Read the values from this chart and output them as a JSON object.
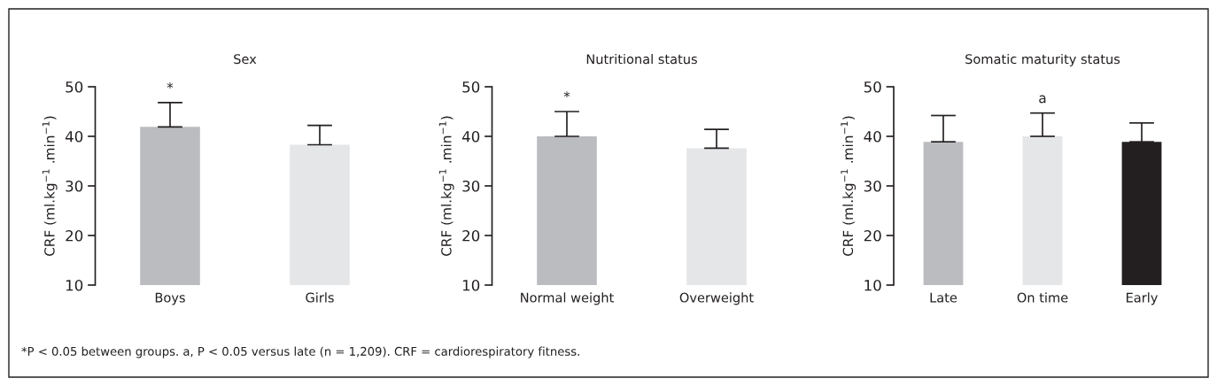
{
  "chart_data": [
    {
      "type": "bar",
      "title": "Sex",
      "ylabel": "CRF (ml.kg$^{−1}$ .min$^{−1}$)",
      "categories": [
        "Boys",
        "Girls"
      ],
      "values": [
        41.9,
        38.3
      ],
      "errors": [
        [
          41.9,
          46.8
        ],
        [
          38.3,
          42.2
        ]
      ],
      "colors": [
        "#bbbcc0",
        "#e5e6e8"
      ],
      "ylim": [
        10,
        50
      ],
      "yticks": [
        10,
        20,
        30,
        40,
        50
      ],
      "annotations": [
        "*",
        "*P < 0.05 between groups. a, P < 0.05 versus late (n = 1,209). CRF = cardiorespiratory fitness."
      ]
    },
    {
      "type": "bar",
      "title": "Nutritional status",
      "ylabel": "CRF (ml.kg$^{−1}$ .min$^{−1}$)",
      "categories": [
        "Normal weight",
        "Overweight"
      ],
      "values": [
        40.0,
        37.6
      ],
      "errors": [
        [
          40.0,
          45.0
        ],
        [
          37.6,
          41.4
        ]
      ],
      "colors": [
        "#bbbcc0",
        "#e5e6e8"
      ],
      "ylim": [
        10,
        50
      ],
      "yticks": [
        10,
        20,
        30,
        40,
        50
      ],
      "annotations": [
        "*"
      ]
    },
    {
      "type": "bar",
      "title": "Somatic maturity status",
      "ylabel": "CRF (ml.kg$^{−1}$ .min$^{−1}$)",
      "categories": [
        "Late",
        "On time",
        "Early"
      ],
      "values": [
        38.9,
        40.0,
        38.9
      ],
      "errors": [
        [
          38.9,
          44.2
        ],
        [
          40.0,
          44.7
        ],
        [
          38.9,
          42.7
        ]
      ],
      "colors": [
        "#bbbcc0",
        "#e5e6e8",
        "#231f20"
      ],
      "ylim": [
        10,
        50
      ],
      "yticks": [
        10,
        20,
        30,
        40,
        50
      ],
      "annotations": [
        "a"
      ]
    }
  ]
}
